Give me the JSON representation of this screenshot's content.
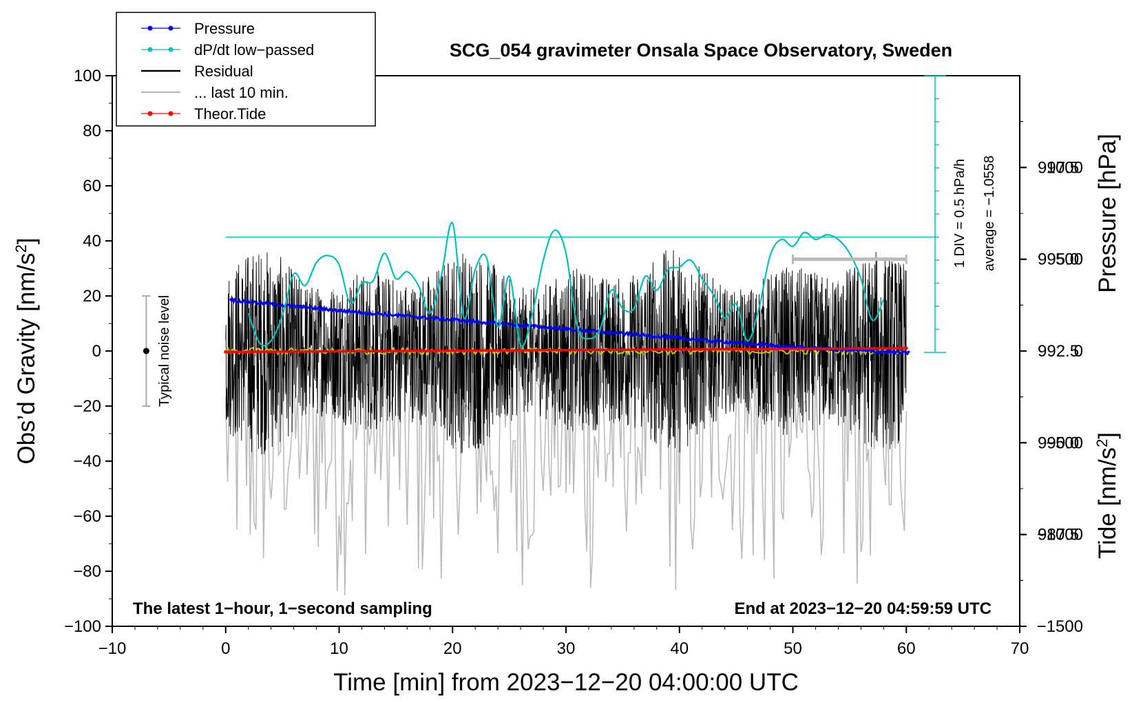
{
  "chart_data": {
    "type": "line",
    "title": "SCG_054 gravimeter Onsala Space Observatory, Sweden",
    "xlabel": "Time [min] from 2023−12−20 04:00:00 UTC",
    "ylabel_main": "Obs’d Gravity [nm/s",
    "ylabel_sup": "2",
    "ylabel_close": "]",
    "ylabel_pressure": "Pressure [hPa]",
    "ylabel_tide": "Tide [nm/s",
    "ylabel_tide_sup": "2",
    "ylabel_tide_close": "]",
    "xlim": [
      -10,
      70
    ],
    "ylim": [
      -100,
      100
    ],
    "pressure_lim": [
      985,
      1000
    ],
    "tide_lim": [
      -1500,
      1500
    ],
    "x_ticks": [
      -10,
      0,
      10,
      20,
      30,
      40,
      50,
      60,
      70
    ],
    "x_tick_labels": [
      "−10",
      "0",
      "10",
      "20",
      "30",
      "40",
      "50",
      "60",
      "70"
    ],
    "y_ticks": [
      100,
      80,
      60,
      40,
      20,
      0,
      -20,
      -40,
      -60,
      -80,
      -100
    ],
    "y_tick_labels": [
      "100",
      "80",
      "60",
      "40",
      "20",
      "0",
      "−20",
      "−40",
      "−60",
      "−80",
      "−100"
    ],
    "pressure_ticks": [
      997.5,
      995.0,
      992.5,
      990.0,
      987.5
    ],
    "pressure_tick_labels": [
      "997.5",
      "995.0",
      "992.5",
      "990.0",
      "987.5"
    ],
    "tide_ticks": [
      1000,
      500,
      0,
      -500,
      -1000,
      -1500
    ],
    "tide_tick_labels": [
      "1000",
      "500",
      "0",
      "−500",
      "−1000",
      "−1500"
    ],
    "legend": [
      {
        "label": "Pressure",
        "color": "#0000ff",
        "marker": true
      },
      {
        "label": "dP/dt low−passed",
        "color": "#00c0c0",
        "marker": true
      },
      {
        "label": "Residual",
        "color": "#000000",
        "marker": false
      },
      {
        "label": "... last 10 min.",
        "color": "#bbbbbb",
        "marker": false
      },
      {
        "label": "Theor.Tide",
        "color": "#ff0000",
        "marker": true
      }
    ],
    "annotations": {
      "bottom_left": "The latest 1−hour, 1−second sampling",
      "bottom_right": "End at 2023−12−20 04:59:59 UTC",
      "noise": "Typical noise level",
      "dpdt_scale": "1 DIV = 0.5 hPa/h",
      "dpdt_average": "average = −1.0558"
    },
    "noise_bar": {
      "x": -7,
      "center": 0,
      "half_range": 20
    },
    "series": [
      {
        "name": "Pressure",
        "color": "#0000ff",
        "axis": "pressure",
        "x": [
          0,
          10,
          20,
          30,
          40,
          50,
          60
        ],
        "values": [
          993.9,
          993.6,
          993.35,
          993.1,
          992.85,
          992.6,
          992.45
        ]
      },
      {
        "name": "dP/dt low-passed",
        "color": "#00c0c0",
        "axis": "dpdt_divisions",
        "x": [
          2,
          3,
          4,
          5,
          6,
          7,
          8,
          9,
          10,
          11,
          12,
          13,
          14,
          15,
          16,
          17,
          18,
          19,
          20,
          21,
          22,
          23,
          24,
          25,
          26,
          27,
          28,
          29,
          30,
          31,
          32,
          33,
          34,
          35,
          36,
          37,
          38,
          39,
          40,
          41,
          42,
          43,
          44,
          45,
          46,
          47,
          48,
          49,
          50,
          51,
          52,
          53,
          54,
          55,
          56,
          57,
          58
        ],
        "values": [
          1.7,
          0.4,
          0.5,
          1.6,
          3.4,
          2.9,
          3.9,
          4.2,
          3.8,
          2.1,
          3.0,
          3.1,
          4.3,
          3.2,
          3.5,
          2.9,
          1.7,
          3.3,
          5.6,
          1.5,
          3.6,
          4.1,
          1.1,
          3.3,
          0.3,
          1.6,
          4.0,
          5.3,
          4.3,
          1.1,
          0.6,
          1.0,
          2.7,
          1.9,
          1.9,
          3.3,
          2.7,
          3.6,
          3.7,
          4.0,
          3.2,
          2.5,
          1.5,
          2.1,
          0.5,
          1.9,
          4.2,
          4.9,
          4.6,
          5.2,
          4.9,
          5.1,
          4.9,
          4.3,
          3.2,
          1.4,
          2.3
        ]
      },
      {
        "name": "dP/dt average",
        "color": "#00c0c0",
        "axis": "dpdt_divisions",
        "value": 5.0
      },
      {
        "name": "Residual",
        "color": "#000000",
        "axis": "gravity",
        "amplitude": 38,
        "x_range": [
          0,
          60
        ]
      },
      {
        "name": "Residual smoothed",
        "color": "#c8c800",
        "axis": "gravity",
        "value": 0
      },
      {
        "name": "last 10 min.",
        "color": "#bbbbbb",
        "axis": "tide",
        "amplitude": 900,
        "x_range": [
          0,
          60
        ]
      },
      {
        "name": "Theor.Tide",
        "color": "#ff0000",
        "axis": "tide",
        "x": [
          0,
          60
        ],
        "values": [
          -5,
          15
        ]
      }
    ],
    "last10_bar": {
      "x": [
        50,
        60
      ],
      "tide": 500
    }
  }
}
